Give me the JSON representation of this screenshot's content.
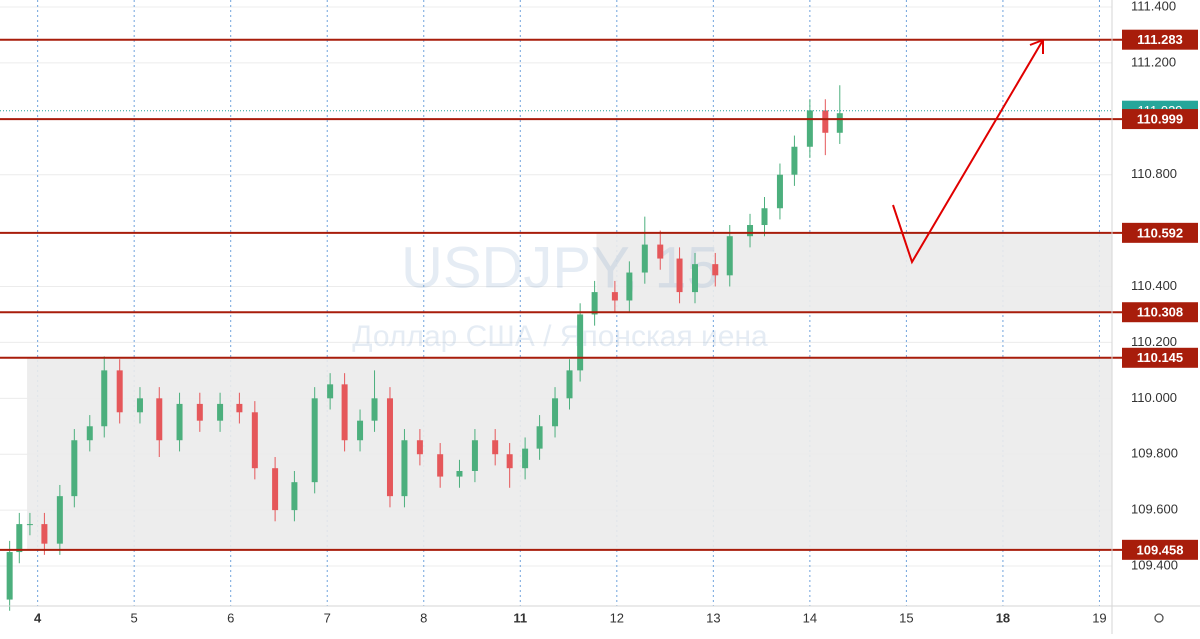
{
  "chart_data": {
    "type": "candlestick",
    "watermark_title": "USDJPY, 15",
    "watermark_subtitle": "Доллар США / Японская иена",
    "up_color": "#4caf7d",
    "down_color": "#e5575a",
    "level_color": "#a81d0b",
    "current_color": "#26a69a",
    "zone_color": "#ebebeb",
    "xlim": [
      -0.39,
      11.13
    ],
    "ylim": [
      109.257,
      111.425
    ],
    "xticks": [
      {
        "value": 0,
        "label": "4",
        "bold": true
      },
      {
        "value": 1,
        "label": "5"
      },
      {
        "value": 2,
        "label": "6"
      },
      {
        "value": 3,
        "label": "7"
      },
      {
        "value": 4,
        "label": "8"
      },
      {
        "value": 5,
        "label": "11",
        "bold": true
      },
      {
        "value": 6,
        "label": "12"
      },
      {
        "value": 7,
        "label": "13"
      },
      {
        "value": 8,
        "label": "14"
      },
      {
        "value": 9,
        "label": "15"
      },
      {
        "value": 10,
        "label": "18",
        "bold": true
      },
      {
        "value": 11,
        "label": "19"
      }
    ],
    "yticks": [
      {
        "value": 111.4,
        "label": "111.400"
      },
      {
        "value": 111.2,
        "label": "111.200"
      },
      {
        "value": 110.8,
        "label": "110.800"
      },
      {
        "value": 110.4,
        "label": "110.400"
      },
      {
        "value": 110.2,
        "label": "110.200"
      },
      {
        "value": 110,
        "label": "110.000"
      },
      {
        "value": 109.8,
        "label": "109.800"
      },
      {
        "value": 109.6,
        "label": "109.600"
      },
      {
        "value": 109.4,
        "label": "109.400"
      }
    ],
    "grid": true,
    "levels": [
      111.283,
      110.999,
      110.592,
      110.308,
      110.145,
      109.458
    ],
    "current_price": 111.029,
    "zones": [
      {
        "from": 110.592,
        "to": 110.308,
        "x_start": 5.79
      },
      {
        "from": 110.145,
        "to": 109.458,
        "x_start": -0.11
      }
    ],
    "x": [
      -0.29,
      -0.19,
      -0.08,
      0.07,
      0.23,
      0.38,
      0.54,
      0.69,
      0.85,
      1.06,
      1.26,
      1.47,
      1.68,
      1.89,
      2.09,
      2.25,
      2.46,
      2.66,
      2.87,
      3.03,
      3.18,
      3.34,
      3.49,
      3.65,
      3.8,
      3.96,
      4.17,
      4.37,
      4.53,
      4.74,
      4.89,
      5.05,
      5.2,
      5.36,
      5.51,
      5.62,
      5.77,
      5.98,
      6.13,
      6.29,
      6.45,
      6.65,
      6.81,
      7.02,
      7.17,
      7.38,
      7.53,
      7.69,
      7.84,
      8.0,
      8.16,
      8.31
    ],
    "open": [
      109.28,
      109.45,
      109.55,
      109.55,
      109.48,
      109.65,
      109.85,
      109.9,
      110.1,
      109.95,
      110.0,
      109.85,
      109.98,
      109.92,
      109.98,
      109.95,
      109.75,
      109.6,
      109.7,
      110.0,
      110.05,
      109.85,
      109.92,
      110.0,
      109.65,
      109.85,
      109.8,
      109.72,
      109.74,
      109.85,
      109.8,
      109.75,
      109.82,
      109.9,
      110.0,
      110.1,
      110.3,
      110.38,
      110.35,
      110.45,
      110.55,
      110.5,
      110.38,
      110.48,
      110.44,
      110.58,
      110.62,
      110.68,
      110.8,
      110.9,
      111.03,
      110.95
    ],
    "high": [
      109.49,
      109.59,
      109.59,
      109.59,
      109.69,
      109.89,
      109.94,
      110.15,
      110.14,
      110.04,
      110.04,
      110.02,
      110.02,
      110.02,
      110.02,
      109.99,
      109.79,
      109.74,
      110.04,
      110.09,
      110.09,
      109.96,
      110.1,
      110.04,
      109.89,
      109.89,
      109.84,
      109.78,
      109.89,
      109.89,
      109.84,
      109.86,
      109.94,
      110.04,
      110.14,
      110.34,
      110.42,
      110.42,
      110.49,
      110.65,
      110.6,
      110.54,
      110.52,
      110.52,
      110.62,
      110.66,
      110.72,
      110.84,
      110.94,
      111.07,
      111.07,
      111.12
    ],
    "low": [
      109.24,
      109.41,
      109.51,
      109.44,
      109.44,
      109.61,
      109.81,
      109.86,
      109.91,
      109.91,
      109.79,
      109.81,
      109.88,
      109.88,
      109.91,
      109.71,
      109.56,
      109.56,
      109.66,
      109.96,
      109.81,
      109.81,
      109.88,
      109.61,
      109.61,
      109.76,
      109.68,
      109.68,
      109.7,
      109.76,
      109.68,
      109.71,
      109.78,
      109.86,
      109.96,
      110.06,
      110.26,
      110.31,
      110.31,
      110.41,
      110.46,
      110.34,
      110.34,
      110.4,
      110.4,
      110.54,
      110.58,
      110.64,
      110.76,
      110.86,
      110.87,
      110.91
    ],
    "close": [
      109.45,
      109.55,
      109.55,
      109.48,
      109.65,
      109.85,
      109.9,
      110.1,
      109.95,
      110.0,
      109.85,
      109.98,
      109.92,
      109.98,
      109.95,
      109.75,
      109.6,
      109.7,
      110.0,
      110.05,
      109.85,
      109.92,
      110.0,
      109.65,
      109.85,
      109.8,
      109.72,
      109.74,
      109.85,
      109.8,
      109.75,
      109.82,
      109.9,
      110.0,
      110.1,
      110.3,
      110.38,
      110.35,
      110.45,
      110.55,
      110.5,
      110.38,
      110.48,
      110.44,
      110.58,
      110.62,
      110.68,
      110.8,
      110.9,
      111.03,
      110.95,
      111.02
    ]
  }
}
